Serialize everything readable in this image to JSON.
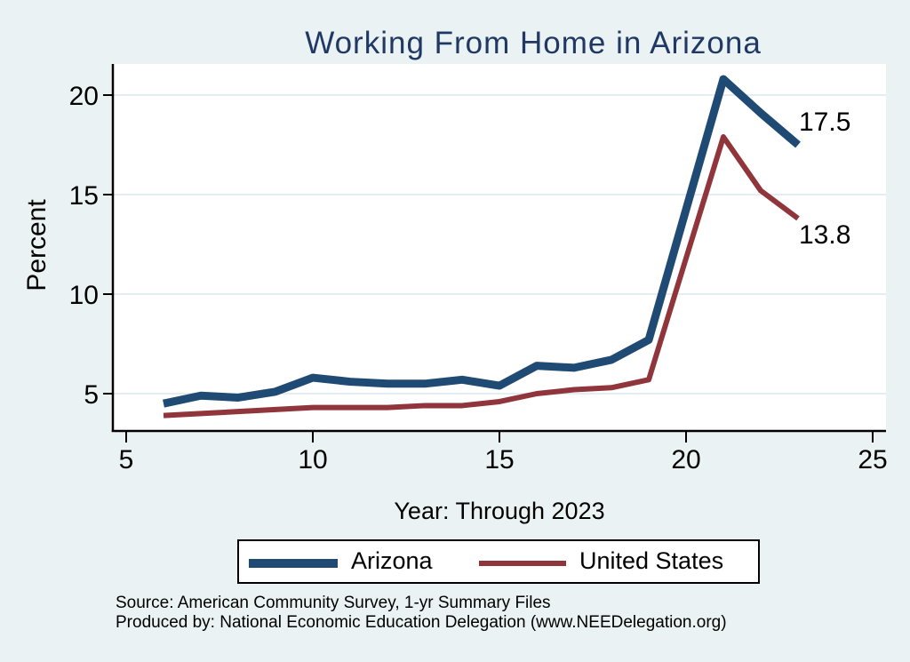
{
  "title": "Working From Home in Arizona",
  "axes": {
    "ylabel": "Percent",
    "xlabel": "Year: Through 2023"
  },
  "annotations": [
    {
      "series": "Arizona",
      "text": "17.5"
    },
    {
      "series": "United States",
      "text": "13.8"
    }
  ],
  "legend": {
    "position": "bottom",
    "items": [
      {
        "label": "Arizona",
        "color": "#1f4a73"
      },
      {
        "label": "United States",
        "color": "#90353b"
      }
    ]
  },
  "footer": {
    "line1": "Source: American Community Survey, 1-yr Summary Files",
    "line2": "Produced by: National Economic Education Delegation (www.NEEDelegation.org)"
  },
  "colors": {
    "page_bg": "#eaf2f3",
    "plot_bg": "#ffffff",
    "grid": "#e4eef2",
    "axis": "#000000",
    "title_text": "#1f3864",
    "arizona_line": "#1f4a73",
    "us_line": "#90353b"
  },
  "chart_data": {
    "type": "line",
    "title": "Working From Home in Arizona",
    "xlabel": "Year: Through 2023",
    "ylabel": "Percent",
    "x": [
      6,
      7,
      8,
      9,
      10,
      11,
      12,
      13,
      14,
      15,
      16,
      17,
      18,
      19,
      21,
      22,
      23
    ],
    "years": [
      2006,
      2007,
      2008,
      2009,
      2010,
      2011,
      2012,
      2013,
      2014,
      2015,
      2016,
      2017,
      2018,
      2019,
      2021,
      2022,
      2023
    ],
    "missing_years": [
      2020
    ],
    "series": [
      {
        "name": "Arizona",
        "color": "#1f4a73",
        "line_width": 9,
        "values": [
          4.5,
          4.9,
          4.8,
          5.1,
          5.8,
          5.6,
          5.5,
          5.5,
          5.7,
          5.4,
          6.4,
          6.3,
          6.7,
          7.7,
          20.8,
          19.1,
          17.5
        ],
        "end_label": "17.5"
      },
      {
        "name": "United States",
        "color": "#90353b",
        "line_width": 6,
        "values": [
          3.9,
          4.0,
          4.1,
          4.2,
          4.3,
          4.3,
          4.3,
          4.4,
          4.4,
          4.6,
          5.0,
          5.2,
          5.3,
          5.7,
          17.9,
          15.2,
          13.8
        ],
        "end_label": "13.8"
      }
    ],
    "xticks": [
      5,
      10,
      15,
      20,
      25
    ],
    "yticks": [
      5,
      10,
      15,
      20
    ],
    "xlim": [
      4.6,
      25.4
    ],
    "ylim": [
      3.1,
      21.6
    ],
    "grid": true,
    "legend_position": "bottom"
  }
}
